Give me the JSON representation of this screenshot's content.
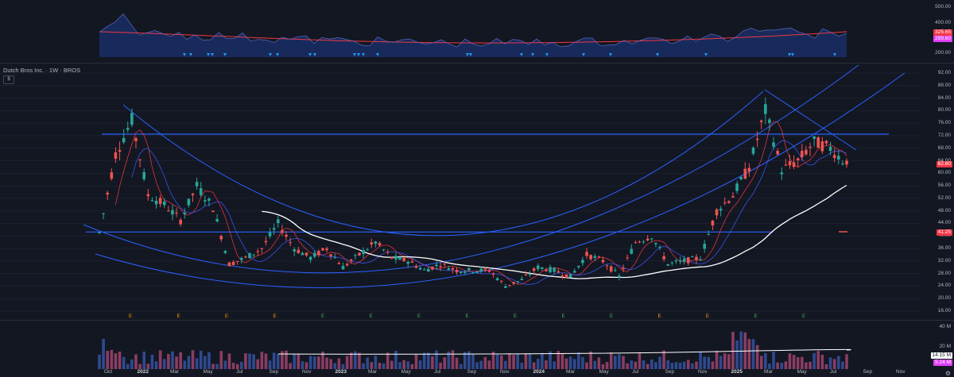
{
  "header": {
    "title": "Dutch Bros Inc. · 1W · BROS",
    "currency_button": "$"
  },
  "colors": {
    "background": "#131722",
    "up": "#26a69a",
    "down": "#ef5350",
    "trendline": "#2962ff",
    "sma_long": "#ffffff",
    "ema_short": "#f23645",
    "ema_mid": "#3d5afe",
    "volume_up": "#2e4a8f",
    "volume_down": "#8a3d62"
  },
  "price_axis": {
    "ticks": [
      "92.00",
      "88.00",
      "84.00",
      "80.00",
      "76.00",
      "72.00",
      "68.00",
      "64.00",
      "60.00",
      "56.00",
      "52.00",
      "48.00",
      "44.00",
      "40.00",
      "36.00",
      "32.00",
      "28.00",
      "24.00",
      "20.00",
      "16.00"
    ],
    "last_price_tag": "62.80",
    "level_tag": "41.25"
  },
  "indicator_axis": {
    "ticks": [
      "500.00",
      "400.00",
      "300.00",
      "200.00"
    ],
    "tag_red": "325.65",
    "tag_pink": "299.60"
  },
  "volume_axis": {
    "ticks": [
      "40 M",
      "20 M"
    ],
    "tag_white": "14.15 M",
    "tag_pink": "5.24 M"
  },
  "time_axis": [
    {
      "label": "Oct",
      "year": false
    },
    {
      "label": "2022",
      "year": true
    },
    {
      "label": "Mar",
      "year": false
    },
    {
      "label": "May",
      "year": false
    },
    {
      "label": "Jul",
      "year": false
    },
    {
      "label": "Sep",
      "year": false
    },
    {
      "label": "Nov",
      "year": false
    },
    {
      "label": "2023",
      "year": true
    },
    {
      "label": "Mar",
      "year": false
    },
    {
      "label": "May",
      "year": false
    },
    {
      "label": "Jul",
      "year": false
    },
    {
      "label": "Sep",
      "year": false
    },
    {
      "label": "Nov",
      "year": false
    },
    {
      "label": "2024",
      "year": true
    },
    {
      "label": "Mar",
      "year": false
    },
    {
      "label": "May",
      "year": false
    },
    {
      "label": "Jul",
      "year": false
    },
    {
      "label": "Sep",
      "year": false
    },
    {
      "label": "Nov",
      "year": false
    },
    {
      "label": "2025",
      "year": true
    },
    {
      "label": "Mar",
      "year": false
    },
    {
      "label": "May",
      "year": false
    },
    {
      "label": "Jul",
      "year": false
    },
    {
      "label": "Sep",
      "year": false
    },
    {
      "label": "Nov",
      "year": false
    }
  ],
  "chart_data": {
    "type": "candlestick",
    "title": "Dutch Bros Inc. · 1W · BROS",
    "ylim": [
      16,
      92
    ],
    "horizontal_levels": [
      72.5,
      41.25
    ],
    "earnings_markers": 15,
    "close_series": [
      {
        "date": "2021-09",
        "value": 41
      },
      {
        "date": "2021-10",
        "value": 66
      },
      {
        "date": "2021-11",
        "value": 77
      },
      {
        "date": "2021-12",
        "value": 53
      },
      {
        "date": "2022-01",
        "value": 50
      },
      {
        "date": "2022-02",
        "value": 45
      },
      {
        "date": "2022-03",
        "value": 56
      },
      {
        "date": "2022-04",
        "value": 49
      },
      {
        "date": "2022-05",
        "value": 31
      },
      {
        "date": "2022-06",
        "value": 33
      },
      {
        "date": "2022-07",
        "value": 36
      },
      {
        "date": "2022-08",
        "value": 44
      },
      {
        "date": "2022-09",
        "value": 36
      },
      {
        "date": "2022-10",
        "value": 33
      },
      {
        "date": "2022-11",
        "value": 36
      },
      {
        "date": "2022-12",
        "value": 30
      },
      {
        "date": "2023-01",
        "value": 34
      },
      {
        "date": "2023-02",
        "value": 38
      },
      {
        "date": "2023-03",
        "value": 33
      },
      {
        "date": "2023-04",
        "value": 32
      },
      {
        "date": "2023-05",
        "value": 29
      },
      {
        "date": "2023-06",
        "value": 31
      },
      {
        "date": "2023-07",
        "value": 29
      },
      {
        "date": "2023-08",
        "value": 29
      },
      {
        "date": "2023-09",
        "value": 29
      },
      {
        "date": "2023-10",
        "value": 24
      },
      {
        "date": "2023-11",
        "value": 26
      },
      {
        "date": "2023-12",
        "value": 30
      },
      {
        "date": "2024-01",
        "value": 29
      },
      {
        "date": "2024-02",
        "value": 27
      },
      {
        "date": "2024-03",
        "value": 34
      },
      {
        "date": "2024-04",
        "value": 32
      },
      {
        "date": "2024-05",
        "value": 27
      },
      {
        "date": "2024-06",
        "value": 38
      },
      {
        "date": "2024-07",
        "value": 40
      },
      {
        "date": "2024-08",
        "value": 31
      },
      {
        "date": "2024-09",
        "value": 32
      },
      {
        "date": "2024-10",
        "value": 33
      },
      {
        "date": "2024-11",
        "value": 48
      },
      {
        "date": "2024-12",
        "value": 53
      },
      {
        "date": "2025-01",
        "value": 62
      },
      {
        "date": "2025-02",
        "value": 80
      },
      {
        "date": "2025-03",
        "value": 61
      },
      {
        "date": "2025-04",
        "value": 64
      },
      {
        "date": "2025-05",
        "value": 70
      },
      {
        "date": "2025-06",
        "value": 68
      },
      {
        "date": "2025-07",
        "value": 62.8
      }
    ]
  }
}
